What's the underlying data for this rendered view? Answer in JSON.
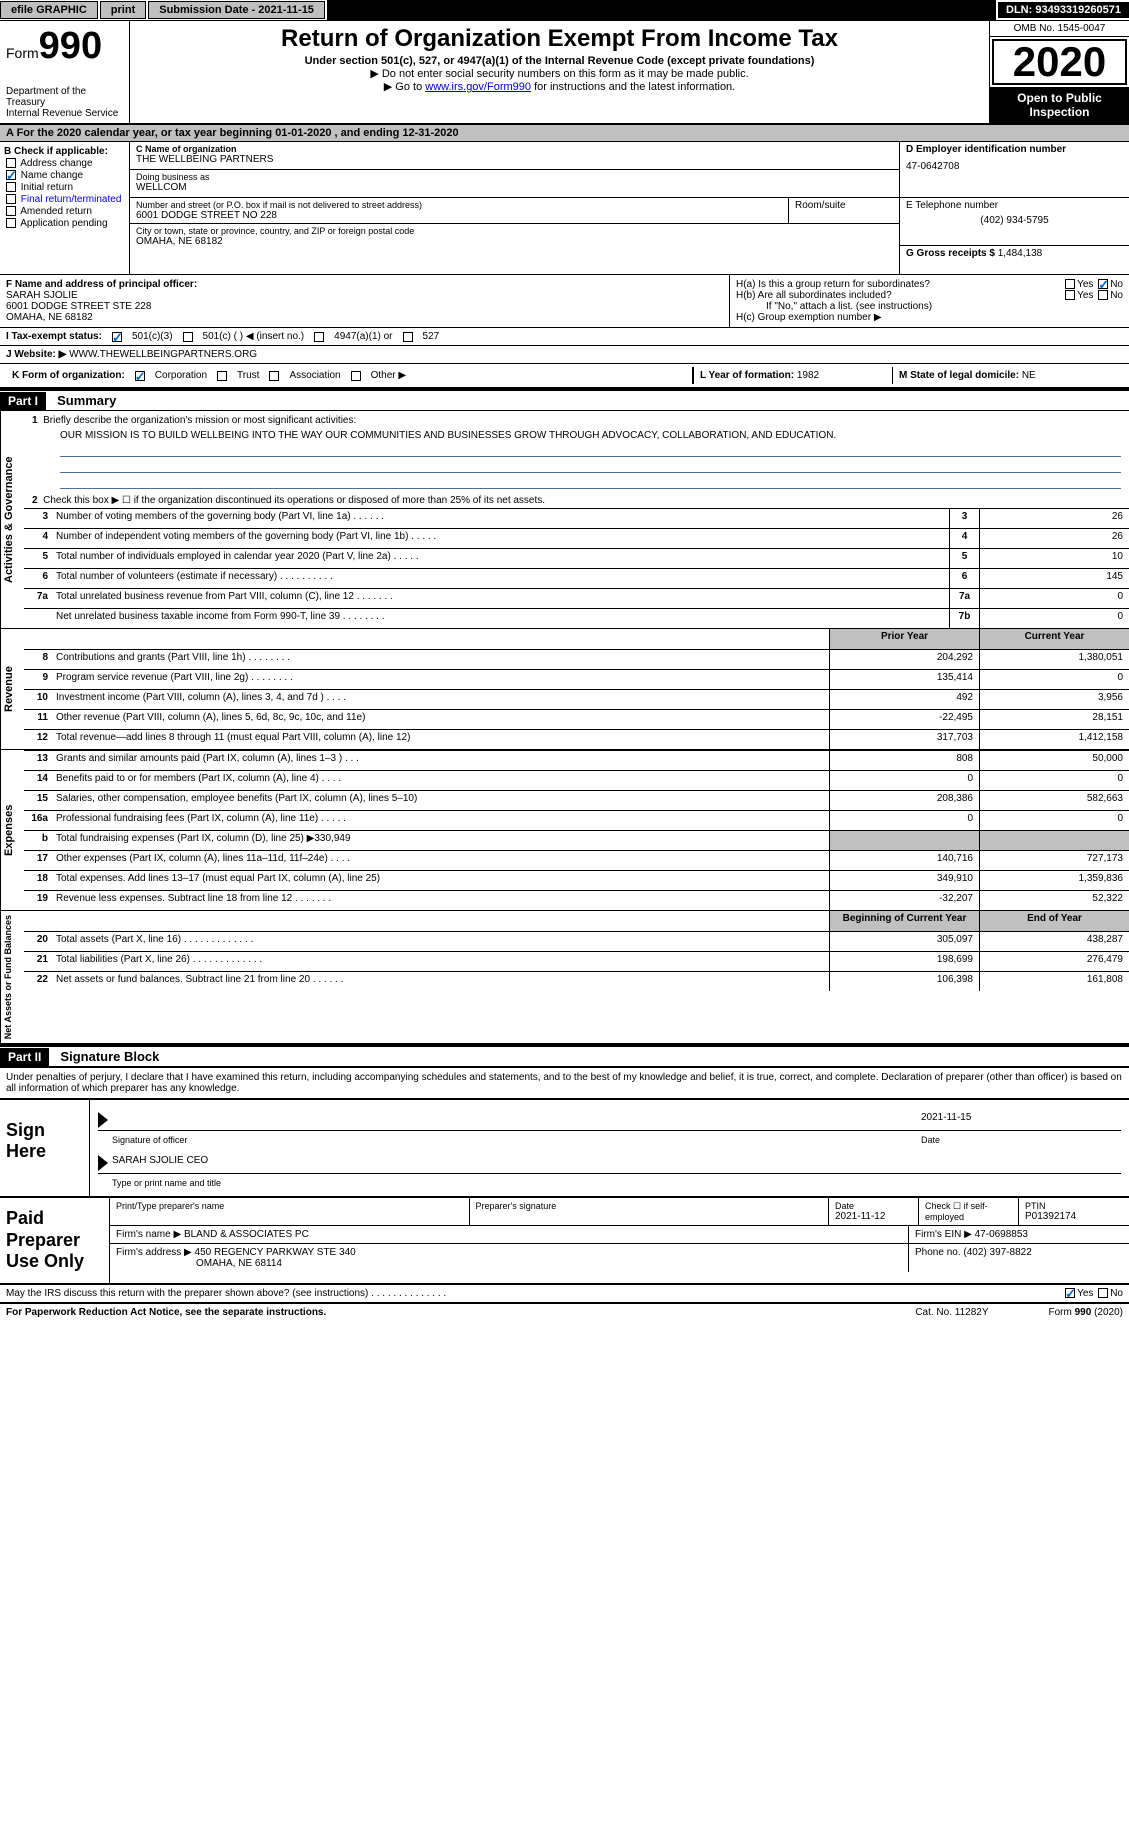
{
  "top": {
    "efile": "efile GRAPHIC",
    "print": "print",
    "sub_date_label": "Submission Date - 2021-11-15",
    "dln": "DLN: 93493319260571"
  },
  "header": {
    "form_word": "Form",
    "form_num": "990",
    "dept": "Department of the Treasury\nInternal Revenue Service",
    "title": "Return of Organization Exempt From Income Tax",
    "sub1": "Under section 501(c), 527, or 4947(a)(1) of the Internal Revenue Code (except private foundations)",
    "sub2": "▶ Do not enter social security numbers on this form as it may be made public.",
    "sub3_pre": "▶ Go to ",
    "sub3_link": "www.irs.gov/Form990",
    "sub3_post": " for instructions and the latest information.",
    "omb": "OMB No. 1545-0047",
    "year": "2020",
    "open": "Open to Public Inspection"
  },
  "period": "A For the 2020 calendar year, or tax year beginning 01-01-2020   , and ending 12-31-2020",
  "B": {
    "heading": "B Check if applicable:",
    "address_change": "Address change",
    "name_change": "Name change",
    "initial_return": "Initial return",
    "final_return": "Final return/terminated",
    "amended_return": "Amended return",
    "application_pending": "Application pending"
  },
  "C": {
    "name_label": "C Name of organization",
    "name": "THE WELLBEING PARTNERS",
    "dba_label": "Doing business as",
    "dba": "WELLCOM",
    "street_label": "Number and street (or P.O. box if mail is not delivered to street address)",
    "room_label": "Room/suite",
    "street": "6001 DODGE STREET NO 228",
    "city_label": "City or town, state or province, country, and ZIP or foreign postal code",
    "city": "OMAHA, NE  68182"
  },
  "D": {
    "label": "D Employer identification number",
    "value": "47-0642708"
  },
  "E": {
    "label": "E Telephone number",
    "value": "(402) 934-5795"
  },
  "G": {
    "label": "G Gross receipts $",
    "value": "1,484,138"
  },
  "F": {
    "label": "F Name and address of principal officer:",
    "name": "SARAH SJOLIE",
    "addr1": "6001 DODGE STREET STE 228",
    "addr2": "OMAHA, NE  68182"
  },
  "H": {
    "a": "H(a)  Is this a group return for subordinates?",
    "b": "H(b)  Are all subordinates included?",
    "b_note": "If \"No,\" attach a list. (see instructions)",
    "c": "H(c)  Group exemption number ▶",
    "yes": "Yes",
    "no": "No"
  },
  "I": {
    "label": "I  Tax-exempt status:",
    "o1": "501(c)(3)",
    "o2": "501(c) (  ) ◀ (insert no.)",
    "o3": "4947(a)(1) or",
    "o4": "527"
  },
  "J": {
    "label": "J  Website: ▶",
    "value": "WWW.THEWELLBEINGPARTNERS.ORG"
  },
  "K": {
    "label": "K Form of organization:",
    "corp": "Corporation",
    "trust": "Trust",
    "assoc": "Association",
    "other": "Other ▶"
  },
  "L": {
    "label": "L Year of formation:",
    "value": "1982"
  },
  "M": {
    "label": "M State of legal domicile:",
    "value": "NE"
  },
  "part1": {
    "header": "Part I",
    "title": "Summary",
    "line1_label": "Briefly describe the organization's mission or most significant activities:",
    "line1_text": "OUR MISSION IS TO BUILD WELLBEING INTO THE WAY OUR COMMUNITIES AND BUSINESSES GROW THROUGH ADVOCACY, COLLABORATION, AND EDUCATION.",
    "line2": "Check this box ▶ ☐  if the organization discontinued its operations or disposed of more than 25% of its net assets.",
    "tabs": {
      "gov": "Activities & Governance",
      "rev": "Revenue",
      "exp": "Expenses",
      "net": "Net Assets or Fund Balances"
    },
    "col_prior": "Prior Year",
    "col_current": "Current Year",
    "col_begin": "Beginning of Current Year",
    "col_end": "End of Year",
    "lines_gov": [
      {
        "n": "3",
        "d": "Number of voting members of the governing body (Part VI, line 1a)   .    .    .    .    .    .",
        "box": "3",
        "v": "26"
      },
      {
        "n": "4",
        "d": "Number of independent voting members of the governing body (Part VI, line 1b)   .    .    .    .    .",
        "box": "4",
        "v": "26"
      },
      {
        "n": "5",
        "d": "Total number of individuals employed in calendar year 2020 (Part V, line 2a)   .    .    .    .    .",
        "box": "5",
        "v": "10"
      },
      {
        "n": "6",
        "d": "Total number of volunteers (estimate if necessary)   .    .    .    .    .    .    .    .    .    .",
        "box": "6",
        "v": "145"
      },
      {
        "n": "7a",
        "d": "Total unrelated business revenue from Part VIII, column (C), line 12   .    .    .    .    .    .    .",
        "box": "7a",
        "v": "0"
      },
      {
        "n": "",
        "d": "Net unrelated business taxable income from Form 990-T, line 39   .    .    .    .    .    .    .    .",
        "box": "7b",
        "v": "0"
      }
    ],
    "lines_rev": [
      {
        "n": "8",
        "d": "Contributions and grants (Part VIII, line 1h)   .    .    .    .    .    .    .    .",
        "p": "204,292",
        "c": "1,380,051"
      },
      {
        "n": "9",
        "d": "Program service revenue (Part VIII, line 2g)   .    .    .    .    .    .    .    .",
        "p": "135,414",
        "c": "0"
      },
      {
        "n": "10",
        "d": "Investment income (Part VIII, column (A), lines 3, 4, and 7d )   .    .    .    .",
        "p": "492",
        "c": "3,956"
      },
      {
        "n": "11",
        "d": "Other revenue (Part VIII, column (A), lines 5, 6d, 8c, 9c, 10c, and 11e)",
        "p": "-22,495",
        "c": "28,151"
      },
      {
        "n": "12",
        "d": "Total revenue—add lines 8 through 11 (must equal Part VIII, column (A), line 12)",
        "p": "317,703",
        "c": "1,412,158"
      }
    ],
    "lines_exp": [
      {
        "n": "13",
        "d": "Grants and similar amounts paid (Part IX, column (A), lines 1–3 )   .    .    .",
        "p": "808",
        "c": "50,000"
      },
      {
        "n": "14",
        "d": "Benefits paid to or for members (Part IX, column (A), line 4)   .    .    .    .",
        "p": "0",
        "c": "0"
      },
      {
        "n": "15",
        "d": "Salaries, other compensation, employee benefits (Part IX, column (A), lines 5–10)",
        "p": "208,386",
        "c": "582,663"
      },
      {
        "n": "16a",
        "d": "Professional fundraising fees (Part IX, column (A), line 11e)   .    .    .    .    .",
        "p": "0",
        "c": "0"
      },
      {
        "n": "b",
        "d": "Total fundraising expenses (Part IX, column (D), line 25) ▶330,949",
        "p": "",
        "c": "",
        "shaded": true
      },
      {
        "n": "17",
        "d": "Other expenses (Part IX, column (A), lines 11a–11d, 11f–24e)   .    .    .    .",
        "p": "140,716",
        "c": "727,173"
      },
      {
        "n": "18",
        "d": "Total expenses. Add lines 13–17 (must equal Part IX, column (A), line 25)",
        "p": "349,910",
        "c": "1,359,836"
      },
      {
        "n": "19",
        "d": "Revenue less expenses. Subtract line 18 from line 12   .    .    .    .    .    .    .",
        "p": "-32,207",
        "c": "52,322"
      }
    ],
    "lines_net": [
      {
        "n": "20",
        "d": "Total assets (Part X, line 16)   .    .    .    .    .    .    .    .    .    .    .    .    .",
        "p": "305,097",
        "c": "438,287"
      },
      {
        "n": "21",
        "d": "Total liabilities (Part X, line 26)   .    .    .    .    .    .    .    .    .    .    .    .    .",
        "p": "198,699",
        "c": "276,479"
      },
      {
        "n": "22",
        "d": "Net assets or fund balances. Subtract line 21 from line 20   .    .    .    .    .    .",
        "p": "106,398",
        "c": "161,808"
      }
    ]
  },
  "part2": {
    "header": "Part II",
    "title": "Signature Block",
    "penalties": "Under penalties of perjury, I declare that I have examined this return, including accompanying schedules and statements, and to the best of my knowledge and belief, it is true, correct, and complete. Declaration of preparer (other than officer) is based on all information of which preparer has any knowledge.",
    "sign_here": "Sign Here",
    "sig_officer": "Signature of officer",
    "sig_date": "2021-11-15",
    "date_label": "Date",
    "officer_name": "SARAH SJOLIE CEO",
    "type_name": "Type or print name and title",
    "paid": "Paid Preparer Use Only",
    "prep_name_label": "Print/Type preparer's name",
    "prep_sig_label": "Preparer's signature",
    "prep_date_label": "Date",
    "prep_date": "2021-11-12",
    "check_self": "Check ☐ if self-employed",
    "ptin_label": "PTIN",
    "ptin": "P01392174",
    "firm_name_label": "Firm's name   ▶",
    "firm_name": "BLAND & ASSOCIATES PC",
    "firm_ein_label": "Firm's EIN ▶",
    "firm_ein": "47-0698853",
    "firm_addr_label": "Firm's address ▶",
    "firm_addr": "450 REGENCY PARKWAY STE 340",
    "firm_city": "OMAHA, NE  68114",
    "phone_label": "Phone no.",
    "phone": "(402) 397-8822",
    "discuss": "May the IRS discuss this return with the preparer shown above? (see instructions)   .    .    .    .    .    .    .    .    .    .    .    .    .    .",
    "yes": "Yes",
    "no": "No"
  },
  "footer": {
    "paperwork": "For Paperwork Reduction Act Notice, see the separate instructions.",
    "cat": "Cat. No. 11282Y",
    "form": "Form 990 (2020)"
  }
}
